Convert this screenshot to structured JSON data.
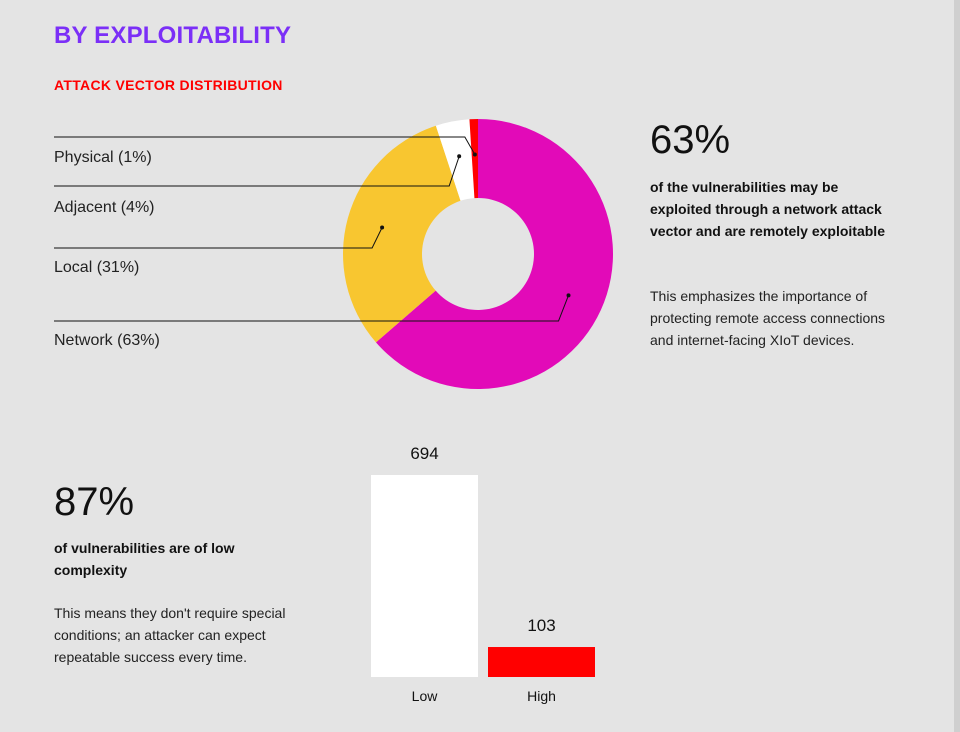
{
  "section": {
    "title": "BY EXPLOITABILITY",
    "subtitle": "ATTACK VECTOR DISTRIBUTION"
  },
  "network_stat": {
    "value": "63%",
    "headline": "of the vulnerabilities may be exploited through a network attack vector and are remotely exploitable",
    "body": "This emphasizes the importance of protecting remote access connections and internet-facing XIoT devices."
  },
  "complexity_stat": {
    "value": "87%",
    "headline": "of vulnerabilities are of low complexity",
    "body": "This means they don't require special conditions; an attacker can expect repeatable success every time."
  },
  "chart_data": [
    {
      "type": "pie",
      "title": "ATTACK VECTOR DISTRIBUTION",
      "donut": true,
      "categories": [
        "Network",
        "Local",
        "Adjacent",
        "Physical"
      ],
      "values": [
        63,
        31,
        4,
        1
      ],
      "legend_labels": [
        "Network (63%)",
        "Local (31%)",
        "Adjacent (4%)",
        "Physical (1%)"
      ],
      "colors": [
        "#e20ab8",
        "#f8c630",
        "#ffffff",
        "#ff0000"
      ],
      "legend": "left"
    },
    {
      "type": "bar",
      "categories": [
        "Low",
        "High"
      ],
      "values": [
        694,
        103
      ],
      "data_labels": [
        "694",
        "103"
      ],
      "colors": [
        "#ffffff",
        "#ff0000"
      ],
      "ylim": [
        0,
        694
      ],
      "grid": false
    }
  ]
}
